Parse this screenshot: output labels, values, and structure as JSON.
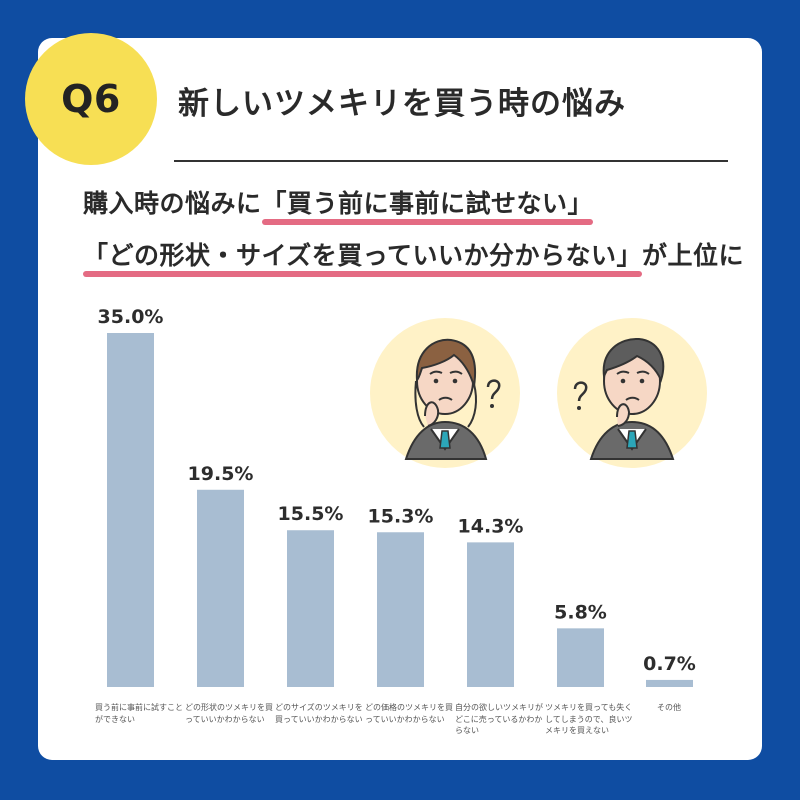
{
  "header": {
    "badge": "Q6",
    "title": "新しいツメキリを買う時の悩み"
  },
  "headline": {
    "line1_prefix": "購入時の悩みに",
    "line1_highlight": "「買う前に事前に試せない」",
    "line2_highlight": "「どの形状・サイズを買っていいか分からない」",
    "line2_suffix": "が上位に"
  },
  "icons": {
    "female_avatar": "female-worried-avatar-icon",
    "male_avatar": "male-worried-avatar-icon"
  },
  "chart_data": {
    "type": "bar",
    "categories": [
      "買う前に事前に試すことができない",
      "どの形状のツメキリを買っていいかわからない",
      "どのサイズのツメキリを買っていいかわからない",
      "どの価格のツメキリを買っていいかわからない",
      "自分の欲しいツメキリがどこに売っているかわからない",
      "ツメキリを買っても失くしてしまうので、良いツメキリを買えない",
      "その他"
    ],
    "values": [
      35.0,
      19.5,
      15.5,
      15.3,
      14.3,
      5.8,
      0.7
    ],
    "value_labels": [
      "35.0%",
      "19.5%",
      "15.5%",
      "15.3%",
      "14.3%",
      "5.8%",
      "0.7%"
    ],
    "ylim": [
      0,
      35
    ],
    "colors": {
      "bar": "#a8bdd2",
      "background": "#0f4da2",
      "card": "#ffffff",
      "badge": "#f7df54",
      "highlight": "#e46b83",
      "text": "#2a2a2a"
    }
  }
}
